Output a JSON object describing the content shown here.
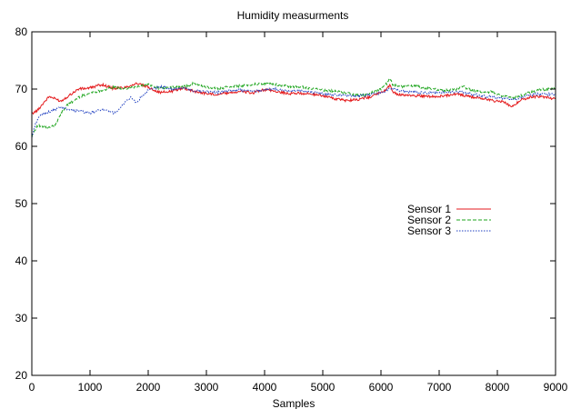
{
  "chart_data": {
    "type": "line",
    "title": "Humidity measurments",
    "xlabel": "Samples",
    "ylabel": "",
    "xlim": [
      0,
      9000
    ],
    "ylim": [
      20,
      80
    ],
    "x_ticks": [
      "0",
      "1000",
      "2000",
      "3000",
      "4000",
      "5000",
      "6000",
      "7000",
      "8000",
      "9000"
    ],
    "y_ticks": [
      "20",
      "30",
      "40",
      "50",
      "60",
      "70",
      "80"
    ],
    "grid": false,
    "legend_position": "right-center",
    "series": [
      {
        "name": "Sensor 1",
        "color": "#e41a1c",
        "dash": "solid",
        "x": [
          0,
          100,
          200,
          300,
          400,
          500,
          600,
          800,
          1000,
          1200,
          1400,
          1600,
          1800,
          2000,
          2200,
          2400,
          2600,
          2800,
          3000,
          3200,
          3400,
          3600,
          3800,
          4000,
          4200,
          4400,
          4600,
          4800,
          5000,
          5200,
          5400,
          5600,
          5800,
          6000,
          6100,
          6150,
          6200,
          6300,
          6500,
          6700,
          6900,
          7100,
          7300,
          7500,
          7700,
          7900,
          8100,
          8250,
          8400,
          8600,
          8800,
          9000
        ],
        "y": [
          65.7,
          66.3,
          67.6,
          68.7,
          68.3,
          67.9,
          68.6,
          70.0,
          70.2,
          70.8,
          70.1,
          70.3,
          71.0,
          70.3,
          69.4,
          69.6,
          70.2,
          69.6,
          69.2,
          69.1,
          69.4,
          69.6,
          69.3,
          69.9,
          69.6,
          69.2,
          69.3,
          69.1,
          68.9,
          68.3,
          68.0,
          68.2,
          68.6,
          69.4,
          70.0,
          70.7,
          69.6,
          69.0,
          68.9,
          68.8,
          68.7,
          68.8,
          69.2,
          68.7,
          68.5,
          68.0,
          67.8,
          66.8,
          68.1,
          68.7,
          68.6,
          68.3
        ]
      },
      {
        "name": "Sensor 2",
        "color": "#1ea51e",
        "dash": "dashed",
        "x": [
          0,
          50,
          100,
          200,
          300,
          400,
          500,
          600,
          800,
          1000,
          1200,
          1400,
          1600,
          1800,
          2000,
          2200,
          2400,
          2600,
          2800,
          3000,
          3200,
          3400,
          3600,
          3800,
          4000,
          4200,
          4400,
          4600,
          4800,
          5000,
          5200,
          5400,
          5600,
          5800,
          6000,
          6100,
          6150,
          6200,
          6300,
          6500,
          6700,
          6900,
          7100,
          7300,
          7400,
          7500,
          7700,
          7900,
          8100,
          8300,
          8500,
          8700,
          8900,
          9000
        ],
        "y": [
          61.8,
          62.8,
          63.6,
          63.4,
          63.2,
          63.8,
          65.7,
          67.1,
          68.5,
          69.3,
          69.8,
          70.3,
          70.0,
          70.4,
          70.8,
          70.1,
          70.3,
          70.4,
          71.0,
          70.3,
          70.1,
          70.4,
          70.6,
          70.8,
          71.0,
          70.8,
          70.5,
          70.4,
          70.1,
          69.8,
          69.6,
          69.3,
          68.9,
          69.2,
          70.0,
          71.0,
          72.0,
          70.8,
          70.4,
          70.6,
          70.3,
          70.0,
          69.8,
          70.0,
          70.6,
          70.0,
          69.5,
          69.5,
          68.8,
          68.5,
          69.2,
          69.8,
          70.1,
          70.0
        ]
      },
      {
        "name": "Sensor 3",
        "color": "#1f3fc0",
        "dash": "dotted",
        "x": [
          0,
          50,
          100,
          200,
          300,
          400,
          500,
          600,
          700,
          800,
          900,
          1000,
          1100,
          1200,
          1300,
          1400,
          1500,
          1600,
          1700,
          1800,
          1900,
          2000,
          2100,
          2200,
          2400,
          2600,
          2800,
          3000,
          3200,
          3400,
          3600,
          3800,
          4000,
          4200,
          4400,
          4600,
          4800,
          5000,
          5200,
          5400,
          5600,
          5800,
          6000,
          6100,
          6200,
          6300,
          6500,
          6700,
          6900,
          7100,
          7300,
          7500,
          7700,
          7900,
          8100,
          8300,
          8500,
          8700,
          8900,
          9000
        ],
        "y": [
          61.5,
          63.5,
          64.8,
          65.7,
          66.0,
          66.4,
          66.8,
          66.6,
          66.3,
          66.2,
          66.0,
          65.8,
          66.1,
          66.5,
          66.1,
          65.9,
          66.3,
          67.8,
          68.5,
          67.6,
          68.8,
          69.8,
          70.1,
          70.4,
          70.0,
          70.2,
          69.7,
          69.6,
          69.4,
          69.7,
          69.8,
          69.6,
          69.9,
          70.0,
          69.6,
          69.7,
          69.5,
          69.2,
          69.0,
          68.9,
          68.8,
          69.0,
          69.3,
          69.9,
          70.1,
          69.7,
          69.5,
          69.4,
          69.3,
          69.4,
          69.6,
          69.3,
          68.8,
          68.6,
          68.4,
          68.2,
          68.8,
          69.2,
          69.1,
          69.0
        ]
      }
    ]
  }
}
